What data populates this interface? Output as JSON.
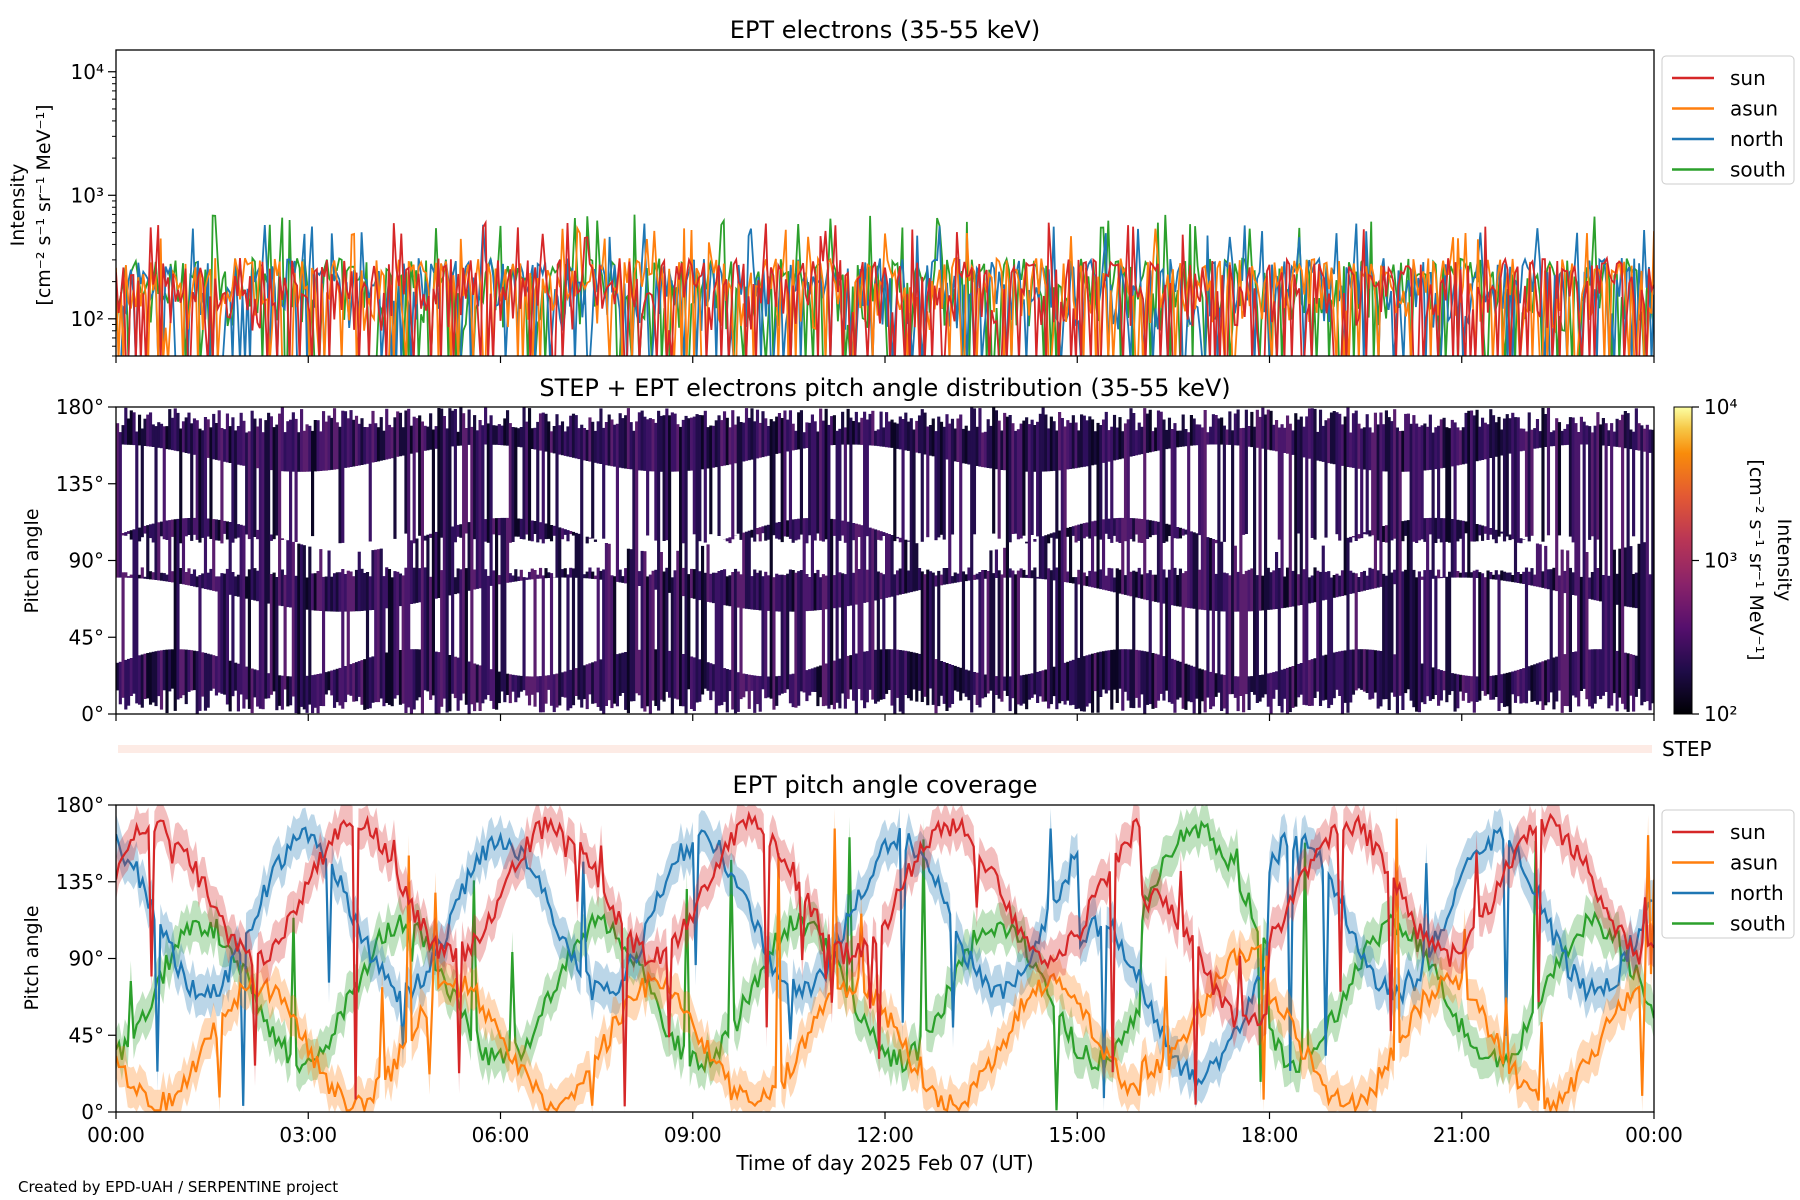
{
  "footer": "Created by EPD-UAH / SERPENTINE project",
  "xlabel": "Time of day 2025 Feb 07 (UT)",
  "xticks": [
    "00:00",
    "03:00",
    "06:00",
    "09:00",
    "12:00",
    "15:00",
    "18:00",
    "21:00",
    "00:00"
  ],
  "colors": {
    "sun": "#d62728",
    "asun": "#ff7f0e",
    "north": "#1f77b4",
    "south": "#2ca02c"
  },
  "chart_data": [
    {
      "type": "line",
      "title": "EPT electrons (35-55 keV)",
      "ylabel": "Intensity",
      "yunit": "[cm⁻² s⁻¹ sr⁻¹ MeV⁻¹]",
      "yscale": "log",
      "ylim": [
        50,
        15000
      ],
      "yticks": [
        "10⁴",
        "10³",
        "10²"
      ],
      "x_range_hours": [
        0,
        24
      ],
      "legend": [
        "sun",
        "asun",
        "north",
        "south"
      ],
      "legend_position": "outside-right-top",
      "series": [
        {
          "name": "sun",
          "color": "#d62728",
          "typical_range": [
            60,
            400
          ],
          "peak": 600
        },
        {
          "name": "asun",
          "color": "#ff7f0e",
          "typical_range": [
            60,
            400
          ],
          "peak": 550
        },
        {
          "name": "north",
          "color": "#1f77b4",
          "typical_range": [
            60,
            350
          ],
          "peak": 600
        },
        {
          "name": "south",
          "color": "#2ca02c",
          "typical_range": [
            60,
            400
          ],
          "peak": 700
        }
      ]
    },
    {
      "type": "heatmap",
      "title": "STEP + EPT electrons pitch angle distribution (35-55 keV)",
      "ylabel": "Pitch angle",
      "ylim": [
        0,
        180
      ],
      "yticks": [
        "180°",
        "135°",
        "90°",
        "45°",
        "0°"
      ],
      "colorbar": {
        "label": "Intensity",
        "unit": "[cm⁻² s⁻¹ sr⁻¹ MeV⁻¹]",
        "scale": "log",
        "range": [
          100,
          10000
        ],
        "ticks": [
          "10⁴",
          "10³",
          "10²"
        ]
      },
      "step_label": "STEP"
    },
    {
      "type": "line",
      "title": "EPT pitch angle coverage",
      "ylabel": "Pitch angle",
      "ylim": [
        0,
        180
      ],
      "yticks": [
        "180°",
        "135°",
        "90°",
        "45°",
        "0°"
      ],
      "x_range_hours": [
        0,
        24
      ],
      "legend": [
        "sun",
        "asun",
        "north",
        "south"
      ],
      "legend_position": "outside-right-top",
      "series": [
        {
          "name": "sun",
          "color": "#d62728",
          "typical_range": [
            50,
            180
          ]
        },
        {
          "name": "asun",
          "color": "#ff7f0e",
          "typical_range": [
            0,
            130
          ]
        },
        {
          "name": "north",
          "color": "#1f77b4",
          "typical_range": [
            20,
            175
          ]
        },
        {
          "name": "south",
          "color": "#2ca02c",
          "typical_range": [
            5,
            165
          ]
        }
      ]
    }
  ]
}
